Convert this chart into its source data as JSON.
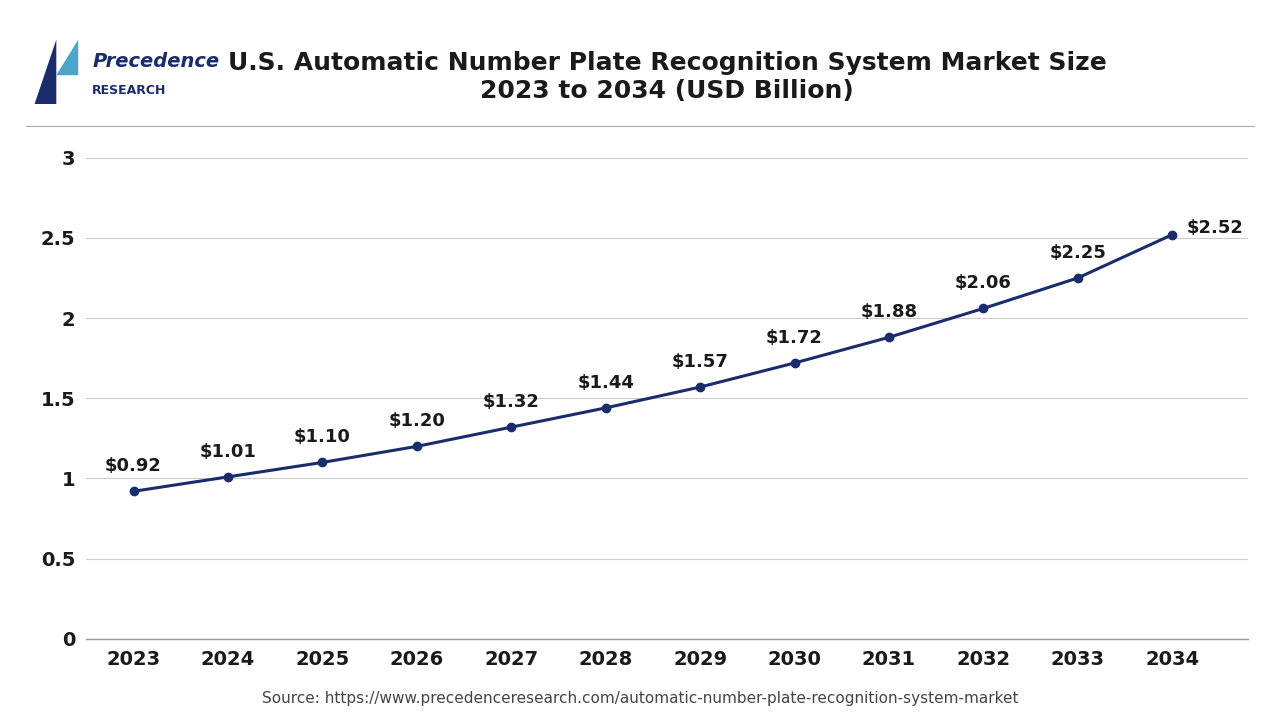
{
  "title": "U.S. Automatic Number Plate Recognition System Market Size\n2023 to 2034 (USD Billion)",
  "years": [
    2023,
    2024,
    2025,
    2026,
    2027,
    2028,
    2029,
    2030,
    2031,
    2032,
    2033,
    2034
  ],
  "values": [
    0.92,
    1.01,
    1.1,
    1.2,
    1.32,
    1.44,
    1.57,
    1.72,
    1.88,
    2.06,
    2.25,
    2.52
  ],
  "labels": [
    "$0.92",
    "$1.01",
    "$1.10",
    "$1.20",
    "$1.32",
    "$1.44",
    "$1.57",
    "$1.72",
    "$1.88",
    "$2.06",
    "$2.25",
    "$2.52"
  ],
  "line_color": "#1a2c6b",
  "marker_color": "#1a2c6b",
  "bg_color": "#ffffff",
  "plot_bg_color": "#ffffff",
  "grid_color": "#cccccc",
  "title_color": "#1a1a1a",
  "tick_color": "#1a1a1a",
  "label_color": "#1a1a1a",
  "source_text": "Source: https://www.precedenceresearch.com/automatic-number-plate-recognition-system-market",
  "yticks": [
    0,
    0.5,
    1,
    1.5,
    2,
    2.5,
    3
  ],
  "ylim": [
    0,
    3.2
  ],
  "title_fontsize": 18,
  "tick_fontsize": 14,
  "label_fontsize": 13,
  "source_fontsize": 11,
  "logo_name": "Precedence",
  "logo_research": "RESEARCH",
  "logo_dark": "#1a2c6b",
  "logo_light": "#4da6c8"
}
